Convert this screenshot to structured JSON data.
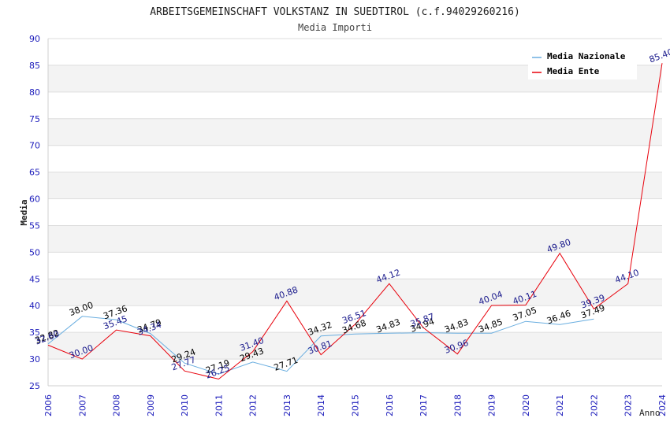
{
  "chart_data": {
    "type": "line",
    "title": "ARBEITSGEMEINSCHAFT VOLKSTANZ IN SUEDTIROL (c.f.94029260216)",
    "subtitle": "Media Importi",
    "xlabel": "Anno",
    "ylabel": "Media",
    "ylim": [
      25,
      90
    ],
    "yticks": [
      "25",
      "30",
      "35",
      "40",
      "45",
      "50",
      "55",
      "60",
      "65",
      "70",
      "75",
      "80",
      "85",
      "90"
    ],
    "categories": [
      "2006",
      "2007",
      "2008",
      "2009",
      "2010",
      "2011",
      "2012",
      "2013",
      "2014",
      "2015",
      "2016",
      "2017",
      "2018",
      "2019",
      "2020",
      "2021",
      "2022",
      "2023",
      "2024"
    ],
    "legend_position": "top-right",
    "series": [
      {
        "name": "Media Nazionale",
        "color": "#6aaee0",
        "label_color": "#000000",
        "values": [
          32.82,
          38.0,
          37.36,
          34.79,
          29.24,
          27.19,
          29.43,
          27.71,
          34.32,
          34.68,
          34.83,
          34.94,
          34.83,
          34.85,
          37.05,
          36.46,
          37.49,
          null,
          null
        ],
        "labels": [
          "32.82",
          "38.00",
          "37.36",
          "34.79",
          "29.24",
          "27.19",
          "29.43",
          "27.71",
          "34.32",
          "34.68",
          "34.83",
          "34.94",
          "34.83",
          "34.85",
          "37.05",
          "36.46",
          "37.49",
          null,
          null
        ]
      },
      {
        "name": "Media Ente",
        "color": "#e8000b",
        "label_color": "#1a1a8c",
        "values": [
          32.6,
          30.0,
          35.45,
          34.34,
          27.77,
          26.25,
          31.4,
          40.88,
          30.81,
          36.51,
          44.12,
          35.87,
          30.96,
          40.04,
          40.11,
          49.8,
          39.39,
          44.1,
          85.4
        ],
        "labels": [
          "32.60",
          "30.00",
          "35.45",
          "34.34",
          "27.77",
          "26.25",
          "31.40",
          "40.88",
          "30.81",
          "36.51",
          "44.12",
          "35.87",
          "30.96",
          "40.04",
          "40.11",
          "49.80",
          "39.39",
          "44.10",
          "85.40"
        ]
      }
    ]
  }
}
